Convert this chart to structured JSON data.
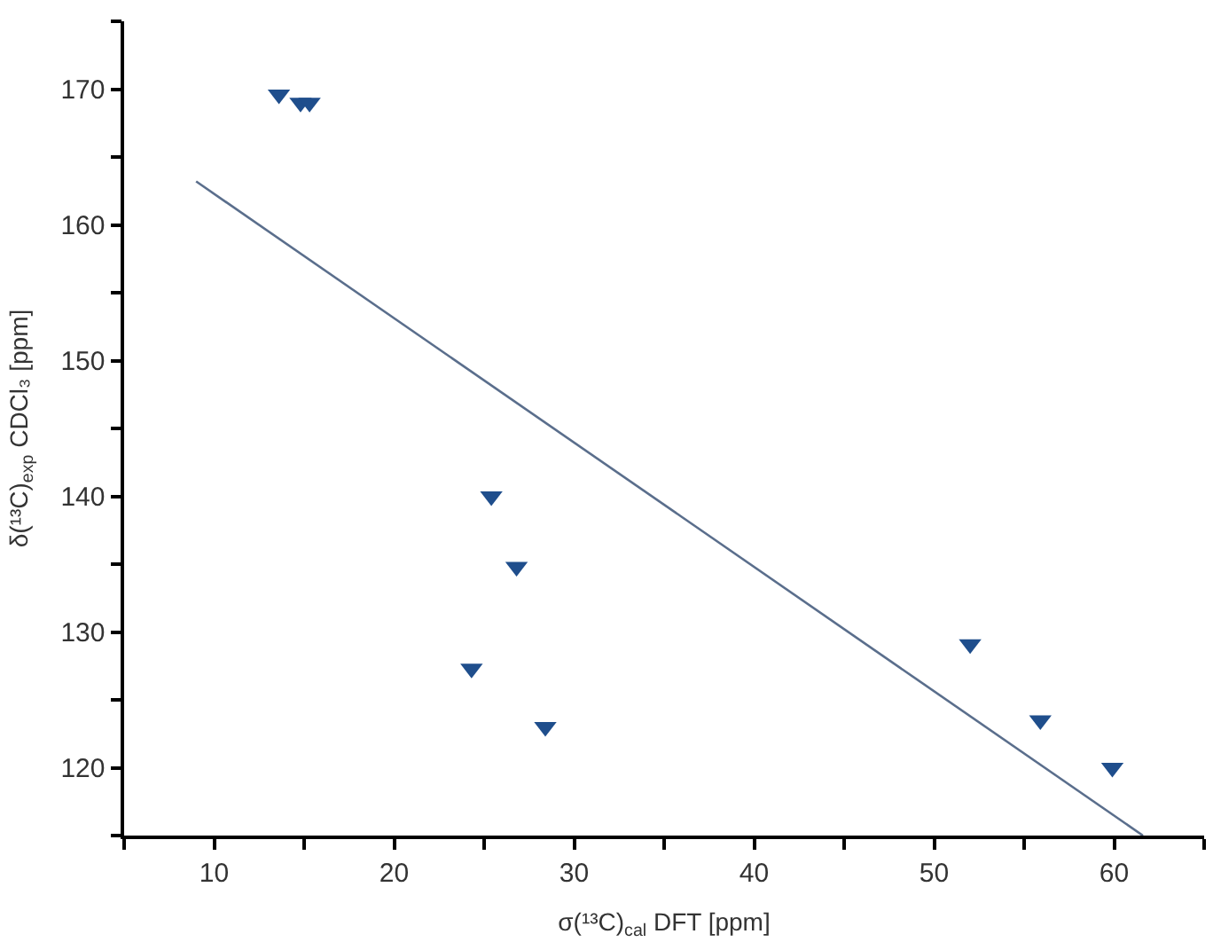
{
  "chart_data": {
    "type": "scatter",
    "xlabel": "σ(¹³C)$_{cal}$ DFT [ppm]",
    "ylabel": "δ(¹³C)$_{exp}$ CDCl₃ [ppm]",
    "series": [
      {
        "color": "#1f4e8c",
        "marker": "triangle",
        "x": [
          13.6,
          14.8,
          15.3,
          25.4,
          26.8,
          24.3,
          28.4,
          52.0,
          55.9,
          59.9
        ],
        "values": [
          169.6,
          169.0,
          169.0,
          140.0,
          134.8,
          127.3,
          123.0,
          129.1,
          123.5,
          120.0
        ]
      },
      {
        "type": "line",
        "color": "#5a6e8c",
        "x": [
          9.0,
          61.6
        ],
        "values": [
          163.2,
          115.0
        ]
      }
    ],
    "xlim": [
      5,
      65
    ],
    "ylim": [
      115,
      175
    ],
    "xticks": [
      {
        "value": 5,
        "label": null
      },
      10,
      {
        "value": 15,
        "label": null
      },
      20,
      {
        "value": 25,
        "label": null
      },
      30,
      {
        "value": 35,
        "label": null
      },
      40,
      {
        "value": 45,
        "label": null
      },
      50,
      {
        "value": 55,
        "label": null
      },
      60,
      {
        "value": 65,
        "label": null
      }
    ],
    "yticks": [
      {
        "value": 115,
        "label": null
      },
      120,
      {
        "value": 125,
        "label": null
      },
      130,
      {
        "value": 135,
        "label": null
      },
      140,
      {
        "value": 145,
        "label": null
      },
      150,
      {
        "value": 155,
        "label": null
      },
      160,
      {
        "value": 165,
        "label": null
      },
      170,
      {
        "value": 175,
        "label": null
      }
    ]
  }
}
